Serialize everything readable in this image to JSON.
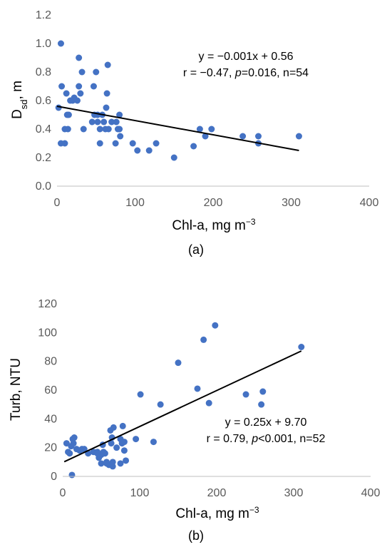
{
  "chart_data": [
    {
      "type": "scatter",
      "panel_label": "(a)",
      "xlabel_main": "Chl-a, mg m",
      "xlabel_sup": "−3",
      "ylabel_main": "D",
      "ylabel_sub": "sd",
      "ylabel_rest": ", m",
      "xlim": [
        0,
        400
      ],
      "ylim": [
        0,
        1.2
      ],
      "xticks": [
        "0",
        "100",
        "200",
        "300",
        "400"
      ],
      "yticks": [
        "0.0",
        "0.2",
        "0.4",
        "0.6",
        "0.8",
        "1.0",
        "1.2"
      ],
      "xtick_values": [
        0,
        100,
        200,
        300,
        400
      ],
      "ytick_values": [
        0,
        0.2,
        0.4,
        0.6,
        0.8,
        1.0,
        1.2
      ],
      "grid": false,
      "point_color": "#4472C4",
      "trend": {
        "slope": -0.001,
        "intercept": 0.56,
        "x_range": [
          0,
          310
        ]
      },
      "annotation": {
        "equation": "y = −0.001x + 0.56",
        "stats_prefix": "r = −0.47, ",
        "stats_p": "p",
        "stats_suffix": "=0.016, n=54"
      },
      "points": [
        [
          2,
          0.55
        ],
        [
          5,
          1.0
        ],
        [
          6,
          0.7
        ],
        [
          5,
          0.3
        ],
        [
          10,
          0.3
        ],
        [
          12,
          0.65
        ],
        [
          10,
          0.4
        ],
        [
          14,
          0.4
        ],
        [
          13,
          0.5
        ],
        [
          15,
          0.5
        ],
        [
          17,
          0.6
        ],
        [
          22,
          0.62
        ],
        [
          26,
          0.6
        ],
        [
          28,
          0.9
        ],
        [
          28,
          0.7
        ],
        [
          30,
          0.65
        ],
        [
          32,
          0.8
        ],
        [
          34,
          0.4
        ],
        [
          45,
          0.45
        ],
        [
          47,
          0.7
        ],
        [
          48,
          0.5
        ],
        [
          50,
          0.8
        ],
        [
          52,
          0.5
        ],
        [
          52,
          0.45
        ],
        [
          55,
          0.3
        ],
        [
          55,
          0.4
        ],
        [
          58,
          0.5
        ],
        [
          60,
          0.45
        ],
        [
          62,
          0.4
        ],
        [
          63,
          0.55
        ],
        [
          64,
          0.65
        ],
        [
          65,
          0.85
        ],
        [
          66,
          0.4
        ],
        [
          70,
          0.45
        ],
        [
          75,
          0.3
        ],
        [
          76,
          0.45
        ],
        [
          78,
          0.4
        ],
        [
          80,
          0.4
        ],
        [
          80,
          0.5
        ],
        [
          81,
          0.35
        ],
        [
          97,
          0.3
        ],
        [
          103,
          0.25
        ],
        [
          118,
          0.25
        ],
        [
          127,
          0.3
        ],
        [
          150,
          0.2
        ],
        [
          175,
          0.28
        ],
        [
          183,
          0.4
        ],
        [
          190,
          0.35
        ],
        [
          198,
          0.4
        ],
        [
          238,
          0.35
        ],
        [
          258,
          0.3
        ],
        [
          258,
          0.35
        ],
        [
          310,
          0.35
        ],
        [
          20,
          0.6
        ]
      ]
    },
    {
      "type": "scatter",
      "panel_label": "(b)",
      "xlabel_main": "Chl-a, mg m",
      "xlabel_sup": "−3",
      "ylabel": "Turb, NTU",
      "xlim": [
        0,
        400
      ],
      "ylim": [
        0,
        120
      ],
      "xticks": [
        "0",
        "100",
        "200",
        "300",
        "400"
      ],
      "yticks": [
        "0",
        "20",
        "40",
        "60",
        "80",
        "100",
        "120"
      ],
      "xtick_values": [
        0,
        100,
        200,
        300,
        400
      ],
      "ytick_values": [
        0,
        20,
        40,
        60,
        80,
        100,
        120
      ],
      "grid": false,
      "point_color": "#4472C4",
      "trend": {
        "slope": 0.25,
        "intercept": 9.7,
        "x_range": [
          2,
          310
        ]
      },
      "annotation": {
        "equation": "y = 0.25x + 9.70",
        "stats_prefix": "r = 0.79, ",
        "stats_p": "p",
        "stats_suffix": "<0.001, n=52"
      },
      "points": [
        [
          5,
          23
        ],
        [
          7,
          17
        ],
        [
          9,
          16
        ],
        [
          11,
          21
        ],
        [
          12,
          1
        ],
        [
          13,
          26
        ],
        [
          14,
          23
        ],
        [
          15,
          27
        ],
        [
          18,
          19
        ],
        [
          22,
          18
        ],
        [
          25,
          19
        ],
        [
          28,
          19
        ],
        [
          33,
          16
        ],
        [
          40,
          17
        ],
        [
          45,
          17
        ],
        [
          47,
          13
        ],
        [
          50,
          15
        ],
        [
          50,
          9
        ],
        [
          52,
          22
        ],
        [
          53,
          17
        ],
        [
          55,
          16
        ],
        [
          57,
          9
        ],
        [
          60,
          8
        ],
        [
          62,
          32
        ],
        [
          63,
          23
        ],
        [
          64,
          27
        ],
        [
          65,
          7
        ],
        [
          65,
          10
        ],
        [
          66,
          34
        ],
        [
          70,
          20
        ],
        [
          75,
          26
        ],
        [
          75,
          9
        ],
        [
          77,
          23
        ],
        [
          78,
          35
        ],
        [
          80,
          18
        ],
        [
          82,
          11
        ],
        [
          95,
          26
        ],
        [
          101,
          57
        ],
        [
          118,
          24
        ],
        [
          127,
          50
        ],
        [
          150,
          79
        ],
        [
          175,
          61
        ],
        [
          183,
          95
        ],
        [
          190,
          51
        ],
        [
          198,
          105
        ],
        [
          238,
          57
        ],
        [
          258,
          50
        ],
        [
          260,
          59
        ],
        [
          310,
          90
        ],
        [
          57,
          10
        ],
        [
          80,
          24
        ],
        [
          45,
          16
        ]
      ]
    }
  ]
}
